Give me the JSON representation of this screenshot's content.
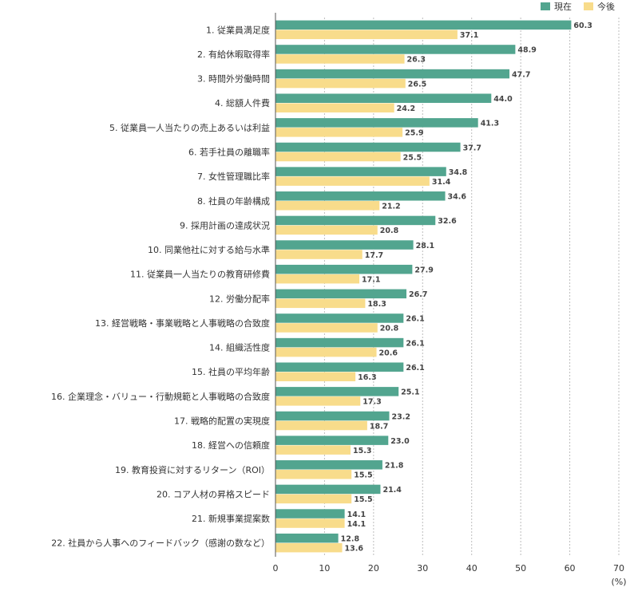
{
  "chart_data": {
    "type": "bar",
    "orientation": "horizontal",
    "categories": [
      "1. 従業員満足度",
      "2. 有給休暇取得率",
      "3. 時間外労働時間",
      "4. 総額人件費",
      "5. 従業員一人当たりの売上あるいは利益",
      "6. 若手社員の離職率",
      "7. 女性管理職比率",
      "8. 社員の年齢構成",
      "9. 採用計画の達成状況",
      "10. 同業他社に対する給与水準",
      "11. 従業員一人当たりの教育研修費",
      "12. 労働分配率",
      "13. 経営戦略・事業戦略と人事戦略の合致度",
      "14. 組織活性度",
      "15. 社員の平均年齢",
      "16. 企業理念・バリュー・行動規範と人事戦略の合致度",
      "17. 戦略的配置の実現度",
      "18. 経営への信頼度",
      "19. 教育投資に対するリターン（ROI）",
      "20. コア人材の昇格スピード",
      "21. 新規事業提案数",
      "22. 社員から人事へのフィードバック（感謝の数など）"
    ],
    "series": [
      {
        "name": "現在",
        "color": "#52a58f",
        "values": [
          60.3,
          48.9,
          47.7,
          44.0,
          41.3,
          37.7,
          34.8,
          34.6,
          32.6,
          28.1,
          27.9,
          26.7,
          26.1,
          26.1,
          26.1,
          25.1,
          23.2,
          23.0,
          21.8,
          21.4,
          14.1,
          12.8
        ],
        "value_labels": [
          "60.3",
          "48.9",
          "47.7",
          "44.0",
          "41.3",
          "37.7",
          "34.8",
          "34.6",
          "32.6",
          "28.1",
          "27.9",
          "26.7",
          "26.1",
          "26.1",
          "26.1",
          "25.1",
          "23.2",
          "23.0",
          "21.8",
          "21.4",
          "14.1",
          "12.8"
        ]
      },
      {
        "name": "今後",
        "color": "#f8dc8b",
        "values": [
          37.1,
          26.3,
          26.5,
          24.2,
          25.9,
          25.5,
          31.4,
          21.2,
          20.8,
          17.7,
          17.1,
          18.3,
          20.8,
          20.6,
          16.3,
          17.3,
          18.7,
          15.3,
          15.5,
          15.5,
          14.1,
          13.6
        ],
        "value_labels": [
          "37.1",
          "26.3",
          "26.5",
          "24.2",
          "25.9",
          "25.5",
          "31.4",
          "21.2",
          "20.8",
          "17.7",
          "17.1",
          "18.3",
          "20.8",
          "20.6",
          "16.3",
          "17.3",
          "18.7",
          "15.3",
          "15.5",
          "15.5",
          "14.1",
          "13.6"
        ]
      }
    ],
    "xlim": [
      0,
      70
    ],
    "xticks": [
      0,
      10,
      20,
      30,
      40,
      50,
      60,
      70
    ],
    "xtick_labels": [
      "0",
      "10",
      "20",
      "30",
      "40",
      "50",
      "60",
      "70"
    ],
    "xunit": "(%)",
    "grid": "vertical dashed",
    "legend_position": "top-right"
  }
}
